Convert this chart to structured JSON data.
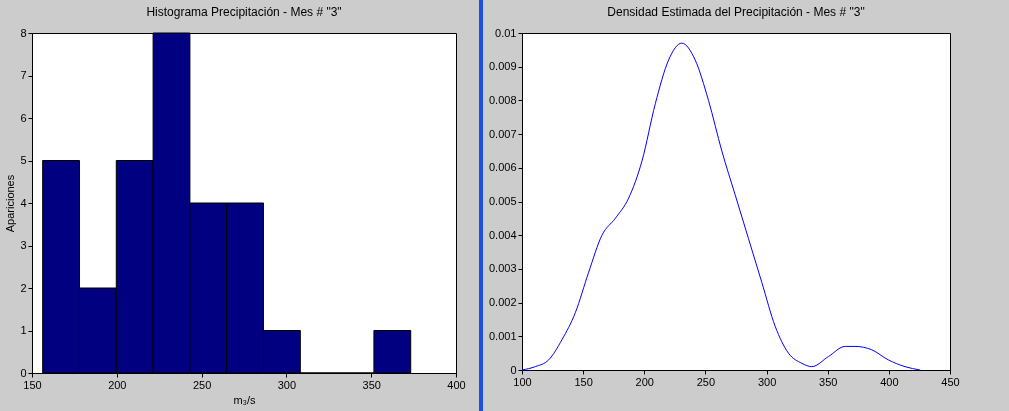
{
  "chart_data": [
    {
      "type": "histogram",
      "title": "Histograma Precipitación - Mes # \"3\"",
      "xlabel": "m₃/s",
      "ylabel": "Apariciones",
      "color": "#000080",
      "bins": [
        156.3,
        178,
        199.7,
        221.4,
        243.1,
        264.8,
        286.5,
        308.2,
        329.9,
        351.6,
        373.3
      ],
      "values": [
        5,
        2,
        5,
        8,
        4,
        4,
        1,
        0,
        0,
        1
      ],
      "xlim": [
        150,
        400
      ],
      "xticks": [
        150,
        200,
        250,
        300,
        350,
        400
      ],
      "ylim": [
        0,
        8
      ],
      "yticks": [
        0,
        1,
        2,
        3,
        4,
        5,
        6,
        7,
        8
      ]
    },
    {
      "type": "line",
      "title": "Densidad Estimada del Precipitación - Mes # \"3\"",
      "color": "#0000ff",
      "x": [
        100,
        110.9,
        121.8,
        132.7,
        143.6,
        154.5,
        165.4,
        176.3,
        187.2,
        198.1,
        209,
        219.9,
        230.7,
        241.6,
        252.5,
        263.4,
        274.3,
        285.2,
        296.1,
        307,
        317.9,
        328.8,
        337,
        350.6,
        364.3,
        372.4,
        386,
        399.6,
        413.2,
        425.5
      ],
      "values": [
        0,
        0.0001,
        0.0003,
        0.0009,
        0.0017,
        0.0029,
        0.004,
        0.0045,
        0.0051,
        0.0062,
        0.0079,
        0.0092,
        0.0097,
        0.0092,
        0.008,
        0.0065,
        0.0052,
        0.0039,
        0.0026,
        0.0013,
        0.0005,
        0.0002,
        0.0001,
        0.0004,
        0.0007,
        0.0007,
        0.0006,
        0.0003,
        0.0001,
        0
      ],
      "xlim": [
        100,
        450
      ],
      "xticks": [
        100,
        150,
        200,
        250,
        300,
        350,
        400,
        450
      ],
      "ylim": [
        0,
        0.01
      ],
      "yticks": [
        0,
        0.001,
        0.002,
        0.003,
        0.004,
        0.005,
        0.006,
        0.007,
        0.008,
        0.009,
        0.01
      ]
    }
  ]
}
